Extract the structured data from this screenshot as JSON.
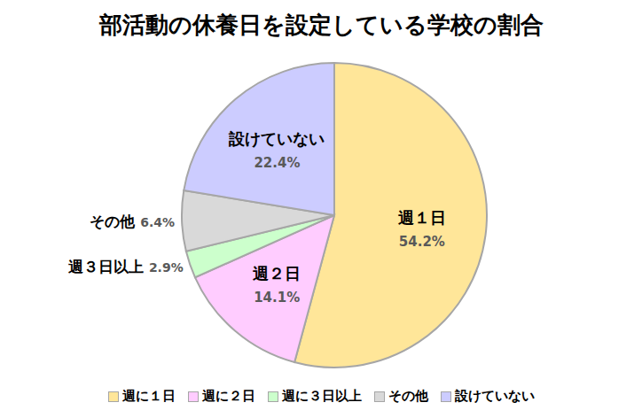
{
  "chart_data": {
    "type": "pie",
    "title": "部活動の休養日を設定している学校の割合",
    "categories": [
      "週１日",
      "週２日",
      "週３日以上",
      "その他",
      "設けていない"
    ],
    "values": [
      54.2,
      14.1,
      2.9,
      6.4,
      22.4
    ],
    "value_labels": [
      "54.2%",
      "14.1%",
      "2.9%",
      "6.4%",
      "22.4%"
    ],
    "colors": [
      "#FFE699",
      "#FFCCFF",
      "#CCFFCC",
      "#D9D9D9",
      "#CCCCFF"
    ],
    "legend_entries": [
      "週に１日",
      "週に２日",
      "週に３日以上",
      "その他",
      "設けていない"
    ],
    "data_labels": true,
    "legend": "bottom"
  }
}
